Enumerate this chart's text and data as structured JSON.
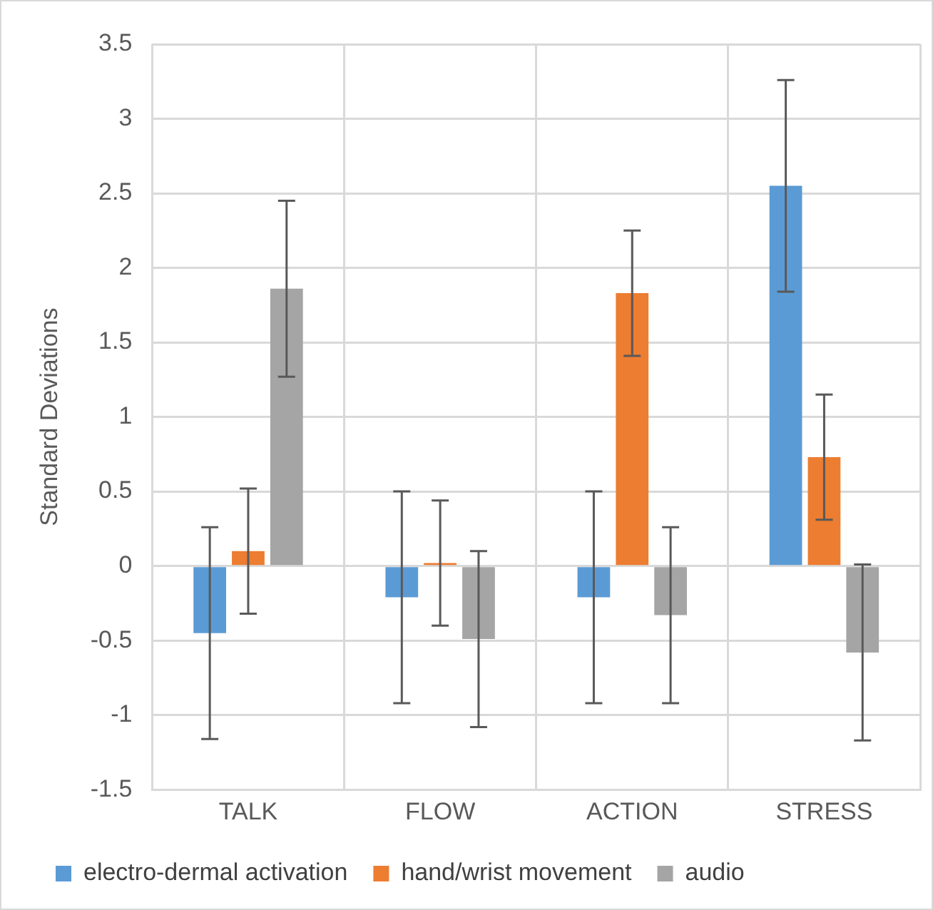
{
  "chart_data": {
    "type": "bar",
    "ylabel": "Standard Deviations",
    "categories": [
      "TALK",
      "FLOW",
      "ACTION",
      "STRESS"
    ],
    "series": [
      {
        "name": "electro-dermal activation",
        "color": "#5b9bd5",
        "values": [
          -0.45,
          -0.21,
          -0.21,
          2.55
        ],
        "errors": [
          0.71,
          0.71,
          0.71,
          0.71
        ]
      },
      {
        "name": "hand/wrist movement",
        "color": "#ed7d31",
        "values": [
          0.1,
          0.02,
          1.83,
          0.73
        ],
        "errors": [
          0.42,
          0.42,
          0.42,
          0.42
        ]
      },
      {
        "name": "audio",
        "color": "#a5a5a5",
        "values": [
          1.86,
          -0.49,
          -0.33,
          -0.58
        ],
        "errors": [
          0.59,
          0.59,
          0.59,
          0.59
        ]
      }
    ],
    "ylim": [
      -1.5,
      3.5
    ],
    "yticks": [
      -1.5,
      -1,
      -0.5,
      0,
      0.5,
      1,
      1.5,
      2,
      2.5,
      3,
      3.5
    ],
    "grid": true,
    "legend": "bottom"
  }
}
